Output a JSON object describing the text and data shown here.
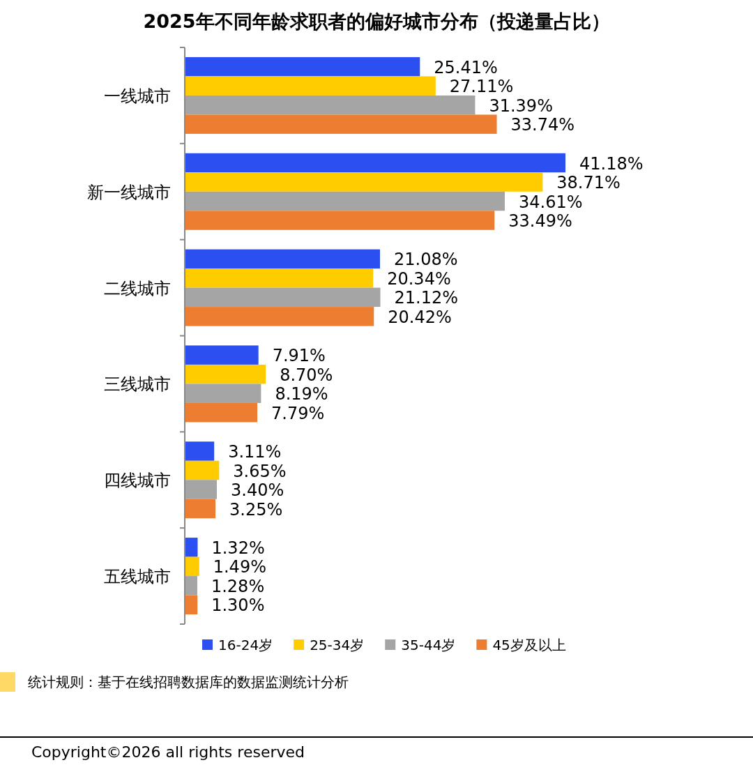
{
  "chart_data": {
    "type": "bar",
    "orientation": "horizontal",
    "title": "2025年不同年龄求职者的偏好城市分布（投递量占比）",
    "categories": [
      "一线城市",
      "新一线城市",
      "二线城市",
      "三线城市",
      "四线城市",
      "五线城市"
    ],
    "series": [
      {
        "name": "16-24岁",
        "color": "#2b4ff0",
        "values": [
          25.41,
          41.18,
          21.08,
          7.91,
          3.11,
          1.32
        ],
        "value_labels": [
          "25.41%",
          "41.18%",
          "21.08%",
          "7.91%",
          "3.11%",
          "1.32%"
        ]
      },
      {
        "name": "25-34岁",
        "color": "#ffcc00",
        "values": [
          27.11,
          38.71,
          20.34,
          8.7,
          3.65,
          1.49
        ],
        "value_labels": [
          "27.11%",
          "38.71%",
          "20.34%",
          "8.70%",
          "3.65%",
          "1.49%"
        ]
      },
      {
        "name": "35-44岁",
        "color": "#a5a5a5",
        "values": [
          31.39,
          34.61,
          21.12,
          8.19,
          3.4,
          1.28
        ],
        "value_labels": [
          "31.39%",
          "34.61%",
          "21.12%",
          "8.19%",
          "3.40%",
          "1.28%"
        ]
      },
      {
        "name": "45岁及以上",
        "color": "#ed7d31",
        "values": [
          33.74,
          33.49,
          20.42,
          7.79,
          3.25,
          1.3
        ],
        "value_labels": [
          "33.74%",
          "33.49%",
          "20.42%",
          "7.79%",
          "3.25%",
          "1.30%"
        ]
      }
    ],
    "legend": "bottom",
    "annotations": [
      "统计规则：基于在线招聘数据库的数据监测统计分析",
      "Copyright©2026 all rights reserved"
    ]
  }
}
